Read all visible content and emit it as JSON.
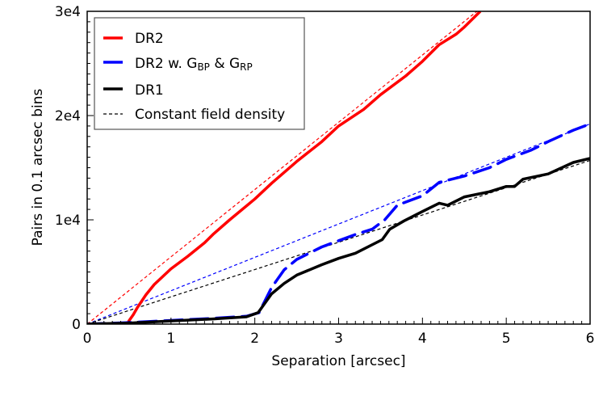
{
  "chart_data": {
    "type": "line",
    "title": "",
    "xlabel": "Separation [arcsec]",
    "ylabel": "Pairs in 0.1 arcsec bins",
    "xlim": [
      0,
      6
    ],
    "ylim": [
      0,
      30000
    ],
    "xticks": [
      0,
      1,
      2,
      3,
      4,
      5,
      6
    ],
    "xtick_labels": [
      "0",
      "1",
      "2",
      "3",
      "4",
      "5",
      "6"
    ],
    "yticks": [
      0,
      10000,
      20000,
      30000
    ],
    "ytick_labels": [
      "0",
      "1e4",
      "2e4",
      "3e4"
    ],
    "grid": false,
    "legend_position": "upper left",
    "series": [
      {
        "name": "DR2",
        "legend_label": "DR2",
        "color": "#ff0000",
        "style": "solid",
        "x": [
          0,
          0.3,
          0.48,
          0.55,
          0.6,
          0.7,
          0.8,
          1.0,
          1.2,
          1.4,
          1.5,
          1.7,
          2.0,
          2.2,
          2.5,
          2.8,
          3.0,
          3.3,
          3.5,
          3.8,
          4.0,
          4.2,
          4.4,
          4.5,
          4.69
        ],
        "y": [
          0,
          0,
          100,
          900,
          1600,
          2800,
          3800,
          5300,
          6500,
          7800,
          8600,
          10000,
          12000,
          13500,
          15600,
          17500,
          19000,
          20600,
          22000,
          23800,
          25200,
          26800,
          27800,
          28500,
          30000
        ]
      },
      {
        "name": "DR2 w. GBP & GRP",
        "legend_label": "DR2 w. G",
        "legend_sub1": "BP",
        "legend_mid": " & G",
        "legend_sub2": "RP",
        "color": "#0000ff",
        "style": "dashed",
        "x": [
          0,
          0.5,
          1.0,
          1.5,
          1.9,
          2.05,
          2.2,
          2.35,
          2.5,
          2.8,
          3.0,
          3.2,
          3.4,
          3.55,
          3.7,
          4.0,
          4.2,
          4.5,
          4.8,
          5.0,
          5.3,
          5.5,
          5.8,
          6.0
        ],
        "y": [
          0,
          150,
          350,
          550,
          750,
          1100,
          3500,
          5200,
          6200,
          7400,
          8000,
          8600,
          9100,
          10000,
          11400,
          12300,
          13600,
          14200,
          15000,
          15800,
          16700,
          17500,
          18600,
          19200
        ]
      },
      {
        "name": "DR1",
        "legend_label": "DR1",
        "color": "#000000",
        "style": "solid",
        "x": [
          0,
          0.5,
          1.0,
          1.5,
          1.9,
          2.04,
          2.2,
          2.35,
          2.5,
          2.8,
          3.0,
          3.2,
          3.52,
          3.61,
          3.78,
          4.0,
          4.2,
          4.3,
          4.5,
          4.8,
          5.0,
          5.1,
          5.2,
          5.5,
          5.8,
          6.0
        ],
        "y": [
          0,
          100,
          300,
          500,
          700,
          1100,
          2900,
          3900,
          4700,
          5700,
          6300,
          6800,
          8100,
          9100,
          9900,
          10800,
          11600,
          11400,
          12200,
          12700,
          13200,
          13200,
          13900,
          14400,
          15500,
          15900
        ]
      },
      {
        "name": "Constant field density (DR2)",
        "color": "#ff0000",
        "style": "thin-dashed",
        "x": [
          0,
          4.65
        ],
        "y": [
          0,
          30000
        ]
      },
      {
        "name": "Constant field density (DR2 w. GBP & GRP)",
        "color": "#0000ff",
        "style": "thin-dashed",
        "x": [
          0,
          6.0
        ],
        "y": [
          0,
          19200
        ]
      },
      {
        "name": "Constant field density (DR1)",
        "color": "#000000",
        "style": "thin-dashed",
        "x": [
          0,
          6.0
        ],
        "y": [
          0,
          15700
        ]
      }
    ],
    "legend": [
      {
        "label": "DR2",
        "color": "#ff0000",
        "style": "solid"
      },
      {
        "label": "DR2 w. GBP & GRP",
        "color": "#0000ff",
        "style": "solid"
      },
      {
        "label": "DR1",
        "color": "#000000",
        "style": "solid"
      },
      {
        "label": "Constant field density",
        "color": "#000000",
        "style": "dashed"
      }
    ]
  },
  "legend_labels": {
    "dr2": "DR2",
    "dr2_gbp_prefix": "DR2 w. G",
    "dr2_gbp_sub1": "BP",
    "dr2_gbp_mid": " & G",
    "dr2_gbp_sub2": "RP",
    "dr1": "DR1",
    "constant": "Constant field density"
  }
}
